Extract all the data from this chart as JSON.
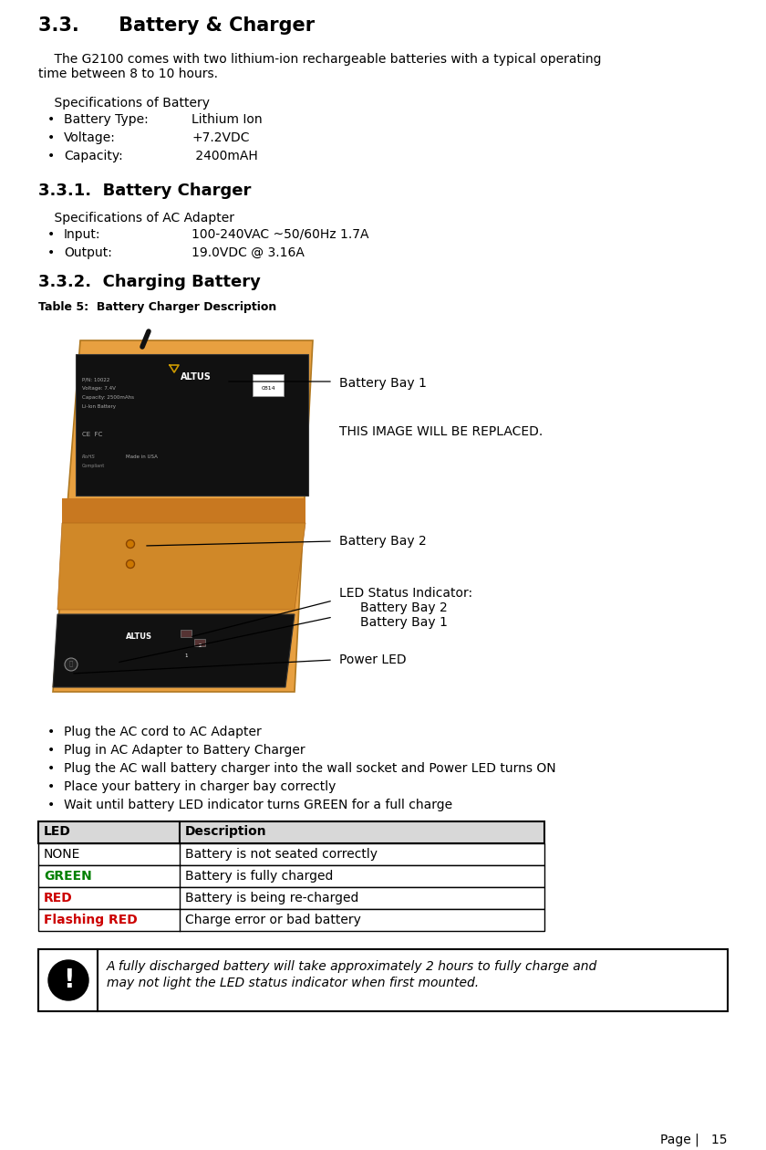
{
  "title": "3.3.      Battery & Charger",
  "body_text1": "    The G2100 comes with two lithium-ion rechargeable batteries with a typical operating",
  "body_text2": "time between 8 to 10 hours.",
  "spec_battery_header": "    Specifications of Battery",
  "battery_bullets": [
    [
      "Battery Type:",
      "Lithium Ion"
    ],
    [
      "Voltage:",
      "+7.2VDC"
    ],
    [
      "Capacity:",
      " 2400mAH"
    ]
  ],
  "sub1_title": "3.3.1.  Battery Charger",
  "spec_ac_header": "    Specifications of AC Adapter",
  "ac_bullets": [
    [
      "Input:",
      "100-240VAC ~50/60Hz 1.7A"
    ],
    [
      "Output:",
      "19.0VDC @ 3.16A"
    ]
  ],
  "sub2_title": "3.3.2.  Charging Battery",
  "table_caption": "Table 5:  Battery Charger Description",
  "image_placeholder": "THIS IMAGE WILL BE REPLACED.",
  "ann_bay1": "Battery Bay 1",
  "ann_bay2": "Battery Bay 2",
  "ann_led1": "LED Status Indicator:",
  "ann_led2": "      Battery Bay 2",
  "ann_led3": "      Battery Bay 1",
  "ann_power": "Power LED",
  "charging_bullets": [
    "Plug the AC cord to AC Adapter",
    "Plug in AC Adapter to Battery Charger",
    "Plug the AC wall battery charger into the wall socket and Power LED turns ON",
    "Place your battery in charger bay correctly",
    "Wait until battery LED indicator turns GREEN for a full charge"
  ],
  "led_table_headers": [
    "LED",
    "Description"
  ],
  "led_table_rows": [
    [
      "NONE",
      "#000000",
      "Battery is not seated correctly"
    ],
    [
      "GREEN",
      "#008000",
      "Battery is fully charged"
    ],
    [
      "RED",
      "#cc0000",
      "Battery is being re-charged"
    ],
    [
      "Flashing RED",
      "#cc0000",
      "Charge error or bad battery"
    ]
  ],
  "note_text1": "A fully discharged battery will take approximately 2 hours to fully charge and",
  "note_text2": "may not light the LED status indicator when first mounted.",
  "page_number": "Page |   15",
  "bg_color": "#ffffff",
  "text_color": "#000000",
  "orange_color": "#E8A040",
  "dark_color": "#1a1a1a"
}
